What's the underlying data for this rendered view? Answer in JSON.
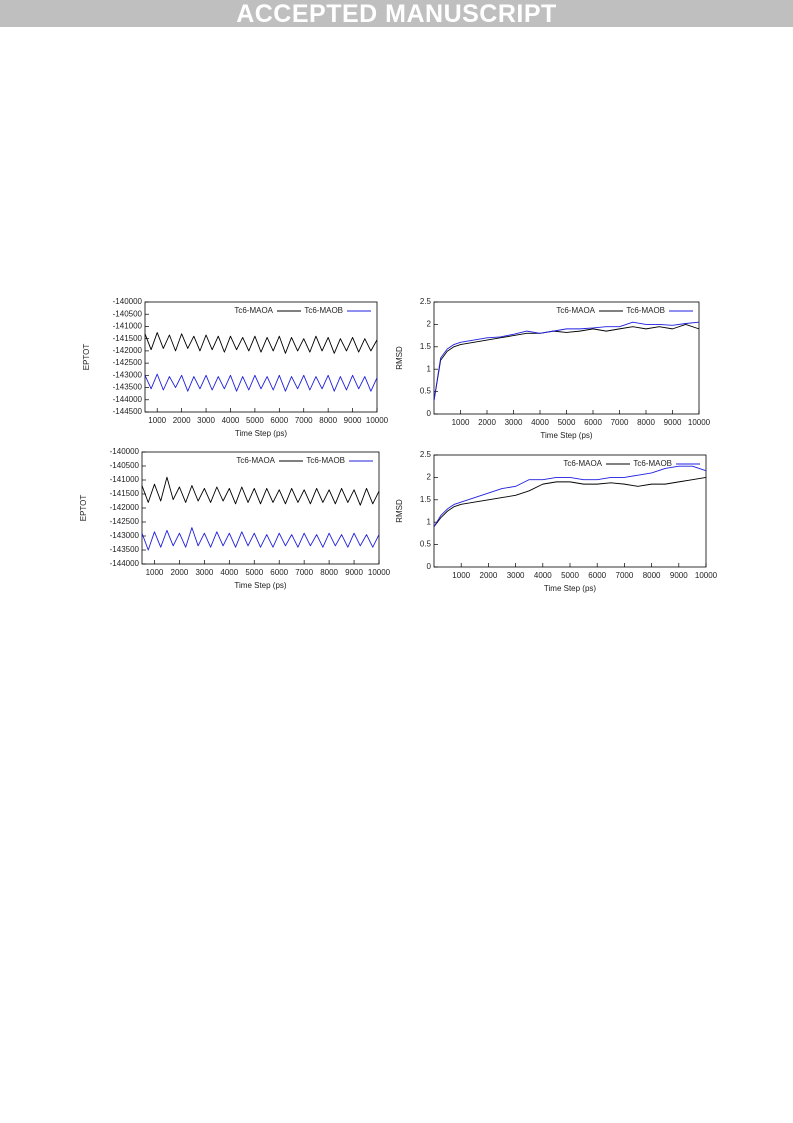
{
  "header": {
    "banner": "ACCEPTED MANUSCRIPT"
  },
  "chart_data": [
    {
      "type": "line",
      "ylabel": "EPTOT",
      "xlabel": "Time Step (ps)",
      "legend": "top-right",
      "xlim": [
        500,
        10000
      ],
      "ylim": [
        -144500,
        -140000
      ],
      "xticks": [
        1000,
        2000,
        3000,
        4000,
        5000,
        6000,
        7000,
        8000,
        9000,
        10000
      ],
      "yticks": [
        -144500,
        -144000,
        -143500,
        -143000,
        -142500,
        -142000,
        -141500,
        -141000,
        -140500,
        -140000
      ],
      "x": [
        500,
        750,
        1000,
        1250,
        1500,
        1750,
        2000,
        2250,
        2500,
        2750,
        3000,
        3250,
        3500,
        3750,
        4000,
        4250,
        4500,
        4750,
        5000,
        5250,
        5500,
        5750,
        6000,
        6250,
        6500,
        6750,
        7000,
        7250,
        7500,
        7750,
        8000,
        8250,
        8500,
        8750,
        9000,
        9250,
        9500,
        9750,
        10000
      ],
      "series": [
        {
          "name": "Tc6-MAOA",
          "color": "#000000",
          "values": [
            -141300,
            -141950,
            -141250,
            -141900,
            -141350,
            -142000,
            -141300,
            -141900,
            -141400,
            -142000,
            -141350,
            -141950,
            -141400,
            -142050,
            -141400,
            -141950,
            -141450,
            -142000,
            -141400,
            -142050,
            -141450,
            -142000,
            -141400,
            -142100,
            -141450,
            -142000,
            -141500,
            -142050,
            -141400,
            -142000,
            -141450,
            -142100,
            -141500,
            -142000,
            -141450,
            -142050,
            -141500,
            -142000,
            -141550
          ]
        },
        {
          "name": "Tc6-MAOB",
          "color": "#1f1fe0",
          "values": [
            -143000,
            -143550,
            -142950,
            -143600,
            -143050,
            -143500,
            -143000,
            -143650,
            -143050,
            -143550,
            -143000,
            -143600,
            -143050,
            -143550,
            -143000,
            -143650,
            -143050,
            -143600,
            -143000,
            -143550,
            -143050,
            -143600,
            -143000,
            -143650,
            -143050,
            -143550,
            -143000,
            -143600,
            -143050,
            -143550,
            -143000,
            -143650,
            -143050,
            -143600,
            -143000,
            -143550,
            -143050,
            -143650,
            -143100
          ]
        }
      ]
    },
    {
      "type": "line",
      "ylabel": "RMSD",
      "xlabel": "Time Step (ps)",
      "legend": "top-right",
      "xlim": [
        0,
        10000
      ],
      "ylim": [
        0,
        2.5
      ],
      "xticks": [
        1000,
        2000,
        3000,
        4000,
        5000,
        6000,
        7000,
        8000,
        9000,
        10000
      ],
      "yticks": [
        0,
        0.5,
        1,
        1.5,
        2,
        2.5
      ],
      "x": [
        0,
        250,
        500,
        750,
        1000,
        1500,
        2000,
        2500,
        3000,
        3500,
        4000,
        4500,
        5000,
        5500,
        6000,
        6500,
        7000,
        7500,
        8000,
        8500,
        9000,
        9500,
        10000
      ],
      "series": [
        {
          "name": "Tc6-MAOA",
          "color": "#000000",
          "values": [
            0.3,
            1.2,
            1.4,
            1.5,
            1.55,
            1.6,
            1.65,
            1.7,
            1.75,
            1.8,
            1.8,
            1.85,
            1.82,
            1.85,
            1.9,
            1.85,
            1.9,
            1.95,
            1.9,
            1.95,
            1.9,
            2.0,
            1.9
          ]
        },
        {
          "name": "Tc6-MAOB",
          "color": "#1f1fe0",
          "values": [
            0.3,
            1.25,
            1.45,
            1.55,
            1.6,
            1.65,
            1.7,
            1.72,
            1.78,
            1.85,
            1.8,
            1.85,
            1.9,
            1.9,
            1.92,
            1.95,
            1.95,
            2.05,
            2.0,
            2.0,
            1.98,
            2.02,
            2.05
          ]
        }
      ]
    },
    {
      "type": "line",
      "ylabel": "EPTOT",
      "xlabel": "Time Step (ps)",
      "legend": "top-right",
      "xlim": [
        500,
        10000
      ],
      "ylim": [
        -144000,
        -140000
      ],
      "xticks": [
        1000,
        2000,
        3000,
        4000,
        5000,
        6000,
        7000,
        8000,
        9000,
        10000
      ],
      "yticks": [
        -144000,
        -143500,
        -143000,
        -142500,
        -142000,
        -141500,
        -141000,
        -140500,
        -140000
      ],
      "x": [
        500,
        750,
        1000,
        1250,
        1500,
        1750,
        2000,
        2250,
        2500,
        2750,
        3000,
        3250,
        3500,
        3750,
        4000,
        4250,
        4500,
        4750,
        5000,
        5250,
        5500,
        5750,
        6000,
        6250,
        6500,
        6750,
        7000,
        7250,
        7500,
        7750,
        8000,
        8250,
        8500,
        8750,
        9000,
        9250,
        9500,
        9750,
        10000
      ],
      "series": [
        {
          "name": "Tc6-MAOA",
          "color": "#000000",
          "values": [
            -141200,
            -141800,
            -141150,
            -141750,
            -140900,
            -141700,
            -141250,
            -141800,
            -141200,
            -141750,
            -141300,
            -141800,
            -141250,
            -141750,
            -141300,
            -141850,
            -141250,
            -141800,
            -141300,
            -141850,
            -141300,
            -141800,
            -141350,
            -141850,
            -141300,
            -141800,
            -141350,
            -141850,
            -141300,
            -141800,
            -141350,
            -141850,
            -141300,
            -141800,
            -141350,
            -141900,
            -141300,
            -141850,
            -141400
          ]
        },
        {
          "name": "Tc6-MAOB",
          "color": "#1f1fe0",
          "values": [
            -142900,
            -143500,
            -142850,
            -143400,
            -142800,
            -143350,
            -142900,
            -143400,
            -142700,
            -143350,
            -142900,
            -143400,
            -142850,
            -143350,
            -142900,
            -143400,
            -142850,
            -143350,
            -142900,
            -143400,
            -142950,
            -143400,
            -142900,
            -143350,
            -142950,
            -143400,
            -142900,
            -143350,
            -142950,
            -143400,
            -142900,
            -143350,
            -142950,
            -143400,
            -142900,
            -143350,
            -142950,
            -143400,
            -142950
          ]
        }
      ]
    },
    {
      "type": "line",
      "ylabel": "RMSD",
      "xlabel": "Time Step (ps)",
      "legend": "top-right",
      "xlim": [
        0,
        10000
      ],
      "ylim": [
        0,
        2.5
      ],
      "xticks": [
        1000,
        2000,
        3000,
        4000,
        5000,
        6000,
        7000,
        8000,
        9000,
        10000
      ],
      "yticks": [
        0,
        0.5,
        1,
        1.5,
        2,
        2.5
      ],
      "x": [
        0,
        250,
        500,
        750,
        1000,
        1500,
        2000,
        2500,
        3000,
        3500,
        4000,
        4500,
        5000,
        5500,
        6000,
        6500,
        7000,
        7500,
        8000,
        8500,
        9000,
        9500,
        10000
      ],
      "series": [
        {
          "name": "Tc6-MAOA",
          "color": "#000000",
          "values": [
            0.9,
            1.1,
            1.25,
            1.35,
            1.4,
            1.45,
            1.5,
            1.55,
            1.6,
            1.7,
            1.85,
            1.9,
            1.9,
            1.85,
            1.85,
            1.88,
            1.85,
            1.8,
            1.85,
            1.85,
            1.9,
            1.95,
            2.0
          ]
        },
        {
          "name": "Tc6-MAOB",
          "color": "#1f1fe0",
          "values": [
            0.9,
            1.15,
            1.3,
            1.4,
            1.45,
            1.55,
            1.65,
            1.75,
            1.8,
            1.95,
            1.95,
            2.0,
            2.0,
            1.95,
            1.95,
            2.0,
            2.0,
            2.05,
            2.1,
            2.2,
            2.25,
            2.25,
            2.15
          ]
        }
      ]
    }
  ]
}
